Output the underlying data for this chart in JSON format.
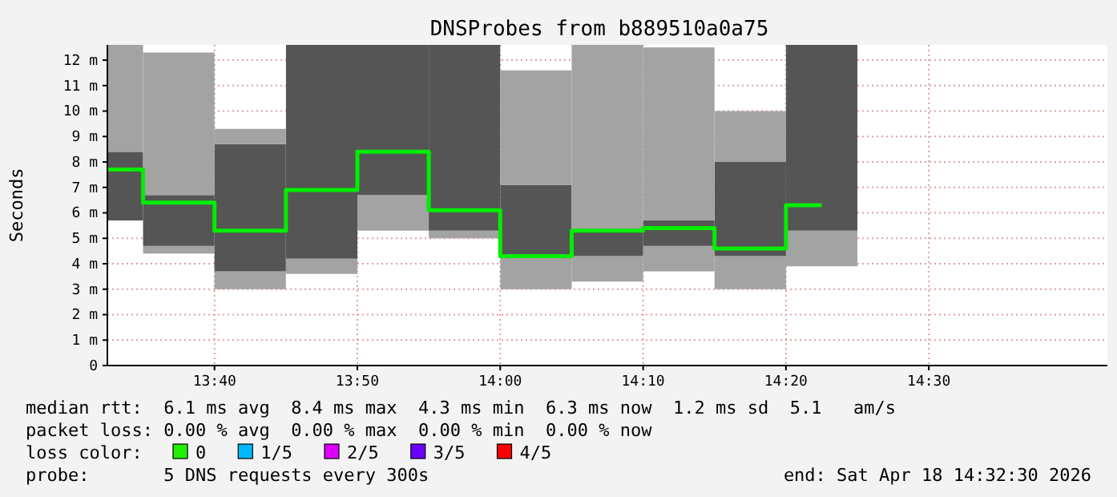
{
  "chart_data": {
    "type": "bar",
    "title": "DNSProbes from b889510a0a75",
    "ylabel": "Seconds",
    "x": [
      13.5417,
      13.625,
      13.7083,
      13.7917,
      13.875,
      13.9583,
      14.0417,
      14.125,
      14.2083,
      14.2917,
      14.375
    ],
    "series": [
      {
        "color": "#a3a3a3",
        "base": [
          null,
          4.4,
          3.0,
          3.6,
          5.3,
          5.0,
          3.0,
          3.3,
          3.7,
          3.0,
          3.9
        ],
        "values": [
          null,
          0.3,
          0.7,
          0.6,
          1.4,
          0.3,
          1.3,
          1.0,
          1.0,
          1.3,
          1.4
        ]
      },
      {
        "color": "#555555",
        "base": [
          5.7,
          4.7,
          3.7,
          4.2,
          6.7,
          5.3,
          4.3,
          4.3,
          4.7,
          4.3,
          5.3
        ],
        "values": [
          2.7,
          2.0,
          5.0,
          8.4,
          5.9,
          7.3,
          2.8,
          1.0,
          1.0,
          3.7,
          7.3
        ]
      },
      {
        "color": "#a3a3a3",
        "base": [
          8.4,
          6.7,
          8.7,
          null,
          null,
          null,
          7.1,
          5.3,
          5.7,
          8.0,
          null
        ],
        "values": [
          4.2,
          5.6,
          0.6,
          null,
          null,
          null,
          4.5,
          7.3,
          6.8,
          2.0,
          null
        ]
      },
      {
        "type": "step",
        "color": "#00ee00",
        "values": [
          7.7,
          6.4,
          5.3,
          6.9,
          8.4,
          6.1,
          4.3,
          5.3,
          5.4,
          4.6,
          6.3
        ]
      },
      {
        "type": "line",
        "name": "0",
        "color": "#22ee00",
        "values": [
          null,
          null,
          null,
          null,
          null,
          null,
          null,
          null,
          null,
          null,
          null
        ]
      },
      {
        "type": "line",
        "name": "1/5",
        "color": "#00b8ff",
        "values": [
          null,
          null,
          null,
          null,
          null,
          null,
          null,
          null,
          null,
          null,
          null
        ]
      },
      {
        "type": "line",
        "name": "2/5",
        "color": "#dd00ff",
        "values": [
          null,
          null,
          null,
          null,
          null,
          null,
          null,
          null,
          null,
          null,
          null
        ]
      },
      {
        "type": "line",
        "name": "3/5",
        "color": "#6a00ff",
        "values": [
          null,
          null,
          null,
          null,
          null,
          null,
          null,
          null,
          null,
          null,
          null
        ]
      },
      {
        "type": "line",
        "name": "4/5",
        "color": "#ff0000",
        "values": [
          null,
          null,
          null,
          null,
          null,
          null,
          null,
          null,
          null,
          null,
          null
        ]
      }
    ],
    "legend_title": "loss color:",
    "legend": "bottom",
    "xlim": [
      13.5417,
      14.7083
    ],
    "xticks": [
      {
        "value": 13.6667,
        "label": "13:40"
      },
      {
        "value": 13.8333,
        "label": "13:50"
      },
      {
        "value": 14,
        "label": "14:00"
      },
      {
        "value": 14.1667,
        "label": "14:10"
      },
      {
        "value": 14.3333,
        "label": "14:20"
      },
      {
        "value": 14.5,
        "label": "14:30"
      }
    ],
    "ylim": [
      0,
      12.6
    ],
    "yticks": [
      0,
      {
        "value": 1,
        "label": "1 m"
      },
      {
        "value": 2,
        "label": "2 m"
      },
      {
        "value": 3,
        "label": "3 m"
      },
      {
        "value": 4,
        "label": "4 m"
      },
      {
        "value": 5,
        "label": "5 m"
      },
      {
        "value": 6,
        "label": "6 m"
      },
      {
        "value": 7,
        "label": "7 m"
      },
      {
        "value": 8,
        "label": "8 m"
      },
      {
        "value": 9,
        "label": "9 m"
      },
      {
        "value": 10,
        "label": "10 m"
      },
      {
        "value": 11,
        "label": "11 m"
      },
      {
        "value": 12,
        "label": "12 m"
      }
    ],
    "grid": true,
    "annotations": [
      "median rtt:  6.1 ms avg  8.4 ms max  4.3 ms min  6.3 ms now  1.2 ms sd  5.1   am/s",
      "packet loss: 0.00 % avg  0.00 % max  0.00 % min  0.00 % now",
      "probe:       5 DNS requests every 300s",
      "end: Sat Apr 18 14:32:30 2026"
    ]
  }
}
